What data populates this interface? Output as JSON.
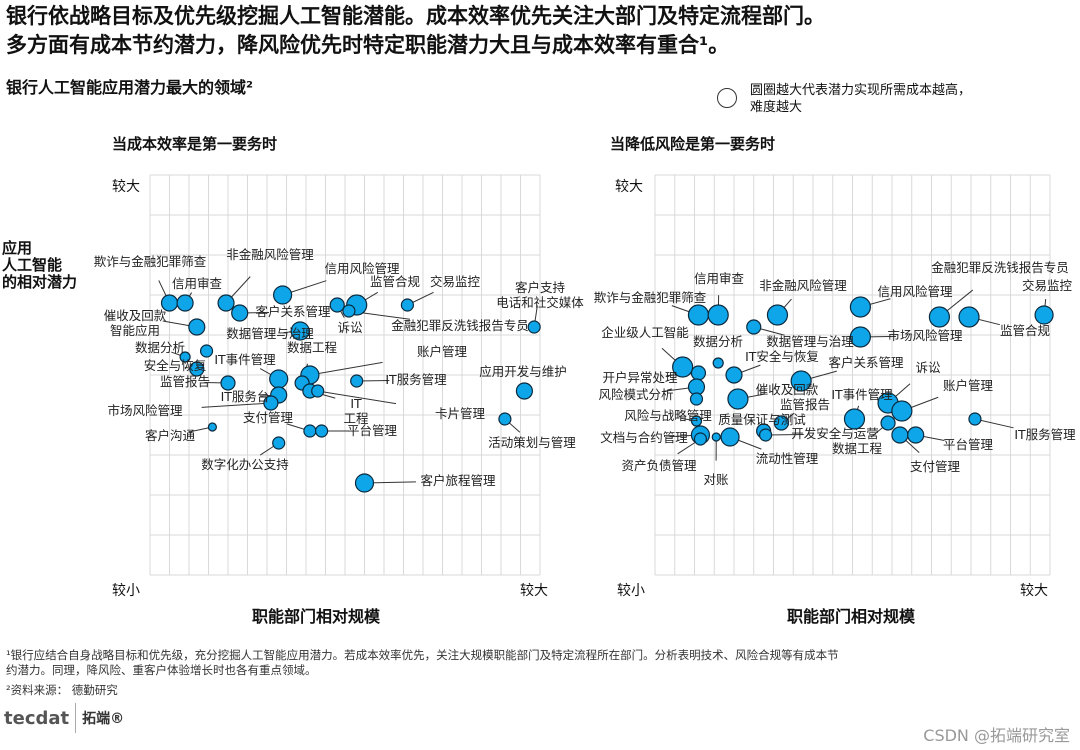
{
  "header": {
    "title_line1": "银行依战略目标及优先级挖掘人工智能潜能。成本效率优先关注大部门及特定流程部门。",
    "title_line2": "多方面有成本节约潜力，降风险优先时特定职能潜力大且与成本效率有重合¹。",
    "subtitle": "银行人工智能应用潜力最大的领域²",
    "legend_line1": "圆圈越大代表潜力实现所需成本越高，",
    "legend_line2": "难度越大",
    "y_title": [
      "应用",
      "人工智能",
      "的相对潜力"
    ]
  },
  "colors": {
    "bubble": "#0ea5e9",
    "bubble_stroke": "#0b2a3d",
    "grid": "#d9d9d9"
  },
  "chart_data": [
    {
      "type": "scatter",
      "title": "当成本效率是第一要务时",
      "xlabel": "职能部门相对规模",
      "ylabel": "应用人工智能的相对潜力",
      "x_ticks": [
        "较小",
        "较大"
      ],
      "y_ticks": [
        "较小",
        "较大"
      ],
      "xlim": [
        0,
        100
      ],
      "ylim": [
        0,
        100
      ],
      "grid": true,
      "points": [
        {
          "label": "欺诈与金融犯罪筛查",
          "x": 5,
          "y": 68,
          "size": 8
        },
        {
          "label": "信用审查",
          "x": 9,
          "y": 68,
          "size": 8
        },
        {
          "label": "非金融风险管理",
          "x": 19.5,
          "y": 68,
          "size": 8
        },
        {
          "label": "客户关系管理",
          "x": 23,
          "y": 65.5,
          "size": 8
        },
        {
          "label": "信用风险管理",
          "x": 34,
          "y": 70,
          "size": 9
        },
        {
          "label": "诉讼",
          "x": 48,
          "y": 67.5,
          "size": 7
        },
        {
          "label": "监管合规",
          "x": 53,
          "y": 67.5,
          "size": 10
        },
        {
          "label": "交易监控",
          "x": 66,
          "y": 67.5,
          "size": 6
        },
        {
          "label": "金融犯罪反洗钱报告专员",
          "x": 51,
          "y": 66,
          "size": 6
        },
        {
          "label": "客户支持 电话和社交媒体",
          "x": 98.5,
          "y": 62,
          "size": 6
        },
        {
          "label": "催收及回款 智能应用",
          "x": 12,
          "y": 62,
          "size": 8
        },
        {
          "label": "数据管理与治理",
          "x": 38.5,
          "y": 61,
          "size": 9
        },
        {
          "label": "数据分析",
          "x": 9,
          "y": 54.5,
          "size": 5
        },
        {
          "label": "",
          "x": 14.5,
          "y": 56,
          "size": 6
        },
        {
          "label": "安全与恢复",
          "x": 12,
          "y": 51.5,
          "size": 7
        },
        {
          "label": "监管报告",
          "x": 20,
          "y": 48,
          "size": 7
        },
        {
          "label": "IT事件管理",
          "x": 33,
          "y": 49,
          "size": 9
        },
        {
          "label": "IT服务台",
          "x": 33,
          "y": 45,
          "size": 8
        },
        {
          "label": "市场风险管理",
          "x": 31,
          "y": 43,
          "size": 7
        },
        {
          "label": "客户沟通",
          "x": 16,
          "y": 37,
          "size": 4
        },
        {
          "label": "账户管理",
          "x": 41,
          "y": 50,
          "size": 9
        },
        {
          "label": "数据工程",
          "x": 39,
          "y": 48,
          "size": 7
        },
        {
          "label": "IT 工程",
          "x": 41,
          "y": 46,
          "size": 7
        },
        {
          "label": "卡片管理",
          "x": 43,
          "y": 46,
          "size": 6
        },
        {
          "label": "IT服务管理",
          "x": 53,
          "y": 48.5,
          "size": 6
        },
        {
          "label": "支付管理",
          "x": 41,
          "y": 36,
          "size": 6
        },
        {
          "label": "平台管理",
          "x": 44,
          "y": 36,
          "size": 6
        },
        {
          "label": "数字化办公支持",
          "x": 33,
          "y": 33,
          "size": 6
        },
        {
          "label": "应用开发与维护",
          "x": 96,
          "y": 46,
          "size": 8
        },
        {
          "label": "活动策划与管理",
          "x": 91,
          "y": 39,
          "size": 6
        },
        {
          "label": "客户旅程管理",
          "x": 55,
          "y": 23,
          "size": 9
        }
      ]
    },
    {
      "type": "scatter",
      "title": "当降低风险是第一要务时",
      "xlabel": "职能部门相对规模",
      "ylabel": "应用人工智能的相对潜力",
      "x_ticks": [
        "较小",
        "较大"
      ],
      "y_ticks": [
        "较小",
        "较大"
      ],
      "xlim": [
        0,
        100
      ],
      "ylim": [
        0,
        100
      ],
      "grid": true,
      "points": [
        {
          "label": "欺诈与金融犯罪筛查",
          "x": 11,
          "y": 65,
          "size": 10
        },
        {
          "label": "信用审查",
          "x": 16,
          "y": 65,
          "size": 10
        },
        {
          "label": "非金融风险管理",
          "x": 31,
          "y": 65,
          "size": 10
        },
        {
          "label": "数据管理与治理",
          "x": 25,
          "y": 62,
          "size": 7
        },
        {
          "label": "数据分析",
          "x": 16,
          "y": 53,
          "size": 5
        },
        {
          "label": "信用风险管理",
          "x": 52,
          "y": 67,
          "size": 10
        },
        {
          "label": "金融犯罪反洗钱报告专员",
          "x": 72,
          "y": 64.5,
          "size": 10
        },
        {
          "label": "监管合规",
          "x": 79.5,
          "y": 64.5,
          "size": 10
        },
        {
          "label": "交易监控",
          "x": 98.5,
          "y": 65,
          "size": 9
        },
        {
          "label": "市场风险管理",
          "x": 52,
          "y": 59.5,
          "size": 10
        },
        {
          "label": "企业级人工智能",
          "x": 7,
          "y": 52,
          "size": 10
        },
        {
          "label": "开户异常处理",
          "x": 11,
          "y": 50.5,
          "size": 7
        },
        {
          "label": "风险模式分析",
          "x": 10.5,
          "y": 47,
          "size": 8
        },
        {
          "label": "",
          "x": 10.5,
          "y": 44,
          "size": 6
        },
        {
          "label": "风险与战略管理",
          "x": 10.5,
          "y": 38.5,
          "size": 5
        },
        {
          "label": "IT安全与恢复",
          "x": 20,
          "y": 50,
          "size": 8
        },
        {
          "label": "客户关系管理",
          "x": 37,
          "y": 48.5,
          "size": 10
        },
        {
          "label": "诉讼",
          "x": 59,
          "y": 43,
          "size": 10
        },
        {
          "label": "账户管理",
          "x": 62.5,
          "y": 41,
          "size": 10
        },
        {
          "label": "IT事件管理",
          "x": 50.5,
          "y": 39,
          "size": 10
        },
        {
          "label": "数据工程",
          "x": 59,
          "y": 38,
          "size": 7
        },
        {
          "label": "催收及回款",
          "x": 21,
          "y": 44,
          "size": 10
        },
        {
          "label": "监管报告",
          "x": 32,
          "y": 38,
          "size": 7
        },
        {
          "label": "质量保证与测试",
          "x": 27.5,
          "y": 36,
          "size": 7
        },
        {
          "label": "开发安全与运营",
          "x": 28,
          "y": 35,
          "size": 6
        },
        {
          "label": "文档与合约管理",
          "x": 11.5,
          "y": 35,
          "size": 9
        },
        {
          "label": "资产负债管理",
          "x": 11.5,
          "y": 34,
          "size": 6
        },
        {
          "label": "对账",
          "x": 15.5,
          "y": 34.5,
          "size": 4
        },
        {
          "label": "流动性管理",
          "x": 19,
          "y": 34.5,
          "size": 9
        },
        {
          "label": "支付管理",
          "x": 62,
          "y": 35,
          "size": 8
        },
        {
          "label": "平台管理",
          "x": 66,
          "y": 35,
          "size": 8
        },
        {
          "label": "IT服务管理",
          "x": 81,
          "y": 39,
          "size": 6
        }
      ]
    }
  ],
  "footnotes": {
    "note1_line1": "¹银行应结合自身战略目标和优先级，充分挖掘人工智能应用潜力。若成本效率优先，关注大规模职能部门及特定流程所在部门。分析表明技术、风险合规等有成本节",
    "note1_line2": "约潜力。同理，降风险、重客户体验增长时也各有重点领域。",
    "note2": "²资料来源： 德勤研究"
  },
  "brand": {
    "logo": "tecdat",
    "logo_cn": "拓端®",
    "watermark": "CSDN @拓端研究室"
  }
}
